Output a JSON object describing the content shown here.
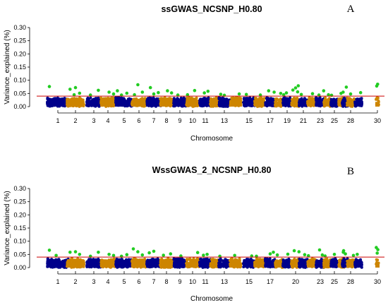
{
  "chart_data": [
    {
      "type": "scatter",
      "panel": "A",
      "title": "ssGWAS_NCSNP_H0.80",
      "xlabel": "Chromosome",
      "ylabel": "Variance_explained (%)",
      "ylim": [
        0,
        0.3
      ],
      "y_ticks": [
        "0.00",
        "0.05",
        "0.10",
        "0.15",
        "0.20",
        "0.25",
        "0.30"
      ],
      "x_tick_labels": [
        "1",
        "2",
        "3",
        "4",
        "5",
        "6",
        "7",
        "8",
        "9",
        "10",
        "11",
        "13",
        "15",
        "17",
        "19",
        "21",
        "23",
        "25",
        "28",
        "30"
      ],
      "threshold": 0.04,
      "threshold_color": "#cc0000",
      "series_colors": {
        "odd_chromosomes": "#00008b",
        "even_chromosomes": "#cd8500",
        "above_threshold": "#22cc22"
      },
      "highlighted_points": [
        {
          "chromosome": 1,
          "value": 0.076
        },
        {
          "chromosome": 2,
          "value": 0.045
        },
        {
          "chromosome": 2,
          "value": 0.051
        },
        {
          "chromosome": 2,
          "value": 0.066
        },
        {
          "chromosome": 2,
          "value": 0.072
        },
        {
          "chromosome": 3,
          "value": 0.062
        },
        {
          "chromosome": 3,
          "value": 0.044
        },
        {
          "chromosome": 4,
          "value": 0.055
        },
        {
          "chromosome": 4,
          "value": 0.048
        },
        {
          "chromosome": 5,
          "value": 0.044
        },
        {
          "chromosome": 5,
          "value": 0.051
        },
        {
          "chromosome": 5,
          "value": 0.06
        },
        {
          "chromosome": 6,
          "value": 0.083
        },
        {
          "chromosome": 6,
          "value": 0.055
        },
        {
          "chromosome": 6,
          "value": 0.045
        },
        {
          "chromosome": 7,
          "value": 0.048
        },
        {
          "chromosome": 7,
          "value": 0.053
        },
        {
          "chromosome": 7,
          "value": 0.072
        },
        {
          "chromosome": 8,
          "value": 0.06
        },
        {
          "chromosome": 8,
          "value": 0.052
        },
        {
          "chromosome": 9,
          "value": 0.044
        },
        {
          "chromosome": 10,
          "value": 0.061
        },
        {
          "chromosome": 10,
          "value": 0.045
        },
        {
          "chromosome": 11,
          "value": 0.052
        },
        {
          "chromosome": 11,
          "value": 0.058
        },
        {
          "chromosome": 13,
          "value": 0.047
        },
        {
          "chromosome": 13,
          "value": 0.043
        },
        {
          "chromosome": 14,
          "value": 0.048
        },
        {
          "chromosome": 15,
          "value": 0.046
        },
        {
          "chromosome": 16,
          "value": 0.044
        },
        {
          "chromosome": 17,
          "value": 0.055
        },
        {
          "chromosome": 17,
          "value": 0.06
        },
        {
          "chromosome": 18,
          "value": 0.05
        },
        {
          "chromosome": 19,
          "value": 0.045
        },
        {
          "chromosome": 19,
          "value": 0.052
        },
        {
          "chromosome": 20,
          "value": 0.056
        },
        {
          "chromosome": 20,
          "value": 0.063
        },
        {
          "chromosome": 20,
          "value": 0.071
        },
        {
          "chromosome": 20,
          "value": 0.079
        },
        {
          "chromosome": 21,
          "value": 0.046
        },
        {
          "chromosome": 22,
          "value": 0.049
        },
        {
          "chromosome": 23,
          "value": 0.06
        },
        {
          "chromosome": 23,
          "value": 0.044
        },
        {
          "chromosome": 24,
          "value": 0.045
        },
        {
          "chromosome": 25,
          "value": 0.043
        },
        {
          "chromosome": 26,
          "value": 0.05
        },
        {
          "chromosome": 27,
          "value": 0.074
        },
        {
          "chromosome": 27,
          "value": 0.055
        },
        {
          "chromosome": 28,
          "value": 0.048
        },
        {
          "chromosome": 29,
          "value": 0.053
        },
        {
          "chromosome": 30,
          "value": 0.078
        },
        {
          "chromosome": 30,
          "value": 0.085
        }
      ]
    },
    {
      "type": "scatter",
      "panel": "B",
      "title": "WssGWAS_2_NCSNP_H0.80",
      "xlabel": "Chromosome",
      "ylabel": "Variance_explained (%)",
      "ylim": [
        0,
        0.3
      ],
      "y_ticks": [
        "0.00",
        "0.05",
        "0.10",
        "0.15",
        "0.20",
        "0.25",
        "0.30"
      ],
      "x_tick_labels": [
        "1",
        "2",
        "3",
        "4",
        "5",
        "6",
        "7",
        "8",
        "9",
        "10",
        "11",
        "13",
        "15",
        "17",
        "20",
        "23",
        "25",
        "28",
        "30"
      ],
      "threshold": 0.04,
      "threshold_color": "#cc0000",
      "series_colors": {
        "odd_chromosomes": "#00008b",
        "even_chromosomes": "#cd8500",
        "above_threshold": "#22cc22"
      },
      "highlighted_points": [
        {
          "chromosome": 1,
          "value": 0.066
        },
        {
          "chromosome": 1,
          "value": 0.046
        },
        {
          "chromosome": 2,
          "value": 0.05
        },
        {
          "chromosome": 2,
          "value": 0.058
        },
        {
          "chromosome": 2,
          "value": 0.06
        },
        {
          "chromosome": 3,
          "value": 0.058
        },
        {
          "chromosome": 3,
          "value": 0.043
        },
        {
          "chromosome": 4,
          "value": 0.05
        },
        {
          "chromosome": 4,
          "value": 0.046
        },
        {
          "chromosome": 5,
          "value": 0.043
        },
        {
          "chromosome": 5,
          "value": 0.049
        },
        {
          "chromosome": 6,
          "value": 0.071
        },
        {
          "chromosome": 6,
          "value": 0.06
        },
        {
          "chromosome": 6,
          "value": 0.048
        },
        {
          "chromosome": 7,
          "value": 0.056
        },
        {
          "chromosome": 7,
          "value": 0.062
        },
        {
          "chromosome": 8,
          "value": 0.052
        },
        {
          "chromosome": 8,
          "value": 0.047
        },
        {
          "chromosome": 9,
          "value": 0.044
        },
        {
          "chromosome": 10,
          "value": 0.057
        },
        {
          "chromosome": 11,
          "value": 0.047
        },
        {
          "chromosome": 11,
          "value": 0.05
        },
        {
          "chromosome": 13,
          "value": 0.043
        },
        {
          "chromosome": 14,
          "value": 0.046
        },
        {
          "chromosome": 15,
          "value": 0.044
        },
        {
          "chromosome": 16,
          "value": 0.043
        },
        {
          "chromosome": 17,
          "value": 0.052
        },
        {
          "chromosome": 17,
          "value": 0.058
        },
        {
          "chromosome": 18,
          "value": 0.048
        },
        {
          "chromosome": 19,
          "value": 0.051
        },
        {
          "chromosome": 20,
          "value": 0.06
        },
        {
          "chromosome": 20,
          "value": 0.064
        },
        {
          "chromosome": 21,
          "value": 0.049
        },
        {
          "chromosome": 22,
          "value": 0.045
        },
        {
          "chromosome": 23,
          "value": 0.067
        },
        {
          "chromosome": 23,
          "value": 0.048
        },
        {
          "chromosome": 24,
          "value": 0.044
        },
        {
          "chromosome": 25,
          "value": 0.05
        },
        {
          "chromosome": 26,
          "value": 0.058
        },
        {
          "chromosome": 27,
          "value": 0.064
        },
        {
          "chromosome": 27,
          "value": 0.052
        },
        {
          "chromosome": 28,
          "value": 0.046
        },
        {
          "chromosome": 29,
          "value": 0.05
        },
        {
          "chromosome": 30,
          "value": 0.068
        },
        {
          "chromosome": 30,
          "value": 0.076
        },
        {
          "chromosome": 30,
          "value": 0.055
        }
      ]
    }
  ]
}
